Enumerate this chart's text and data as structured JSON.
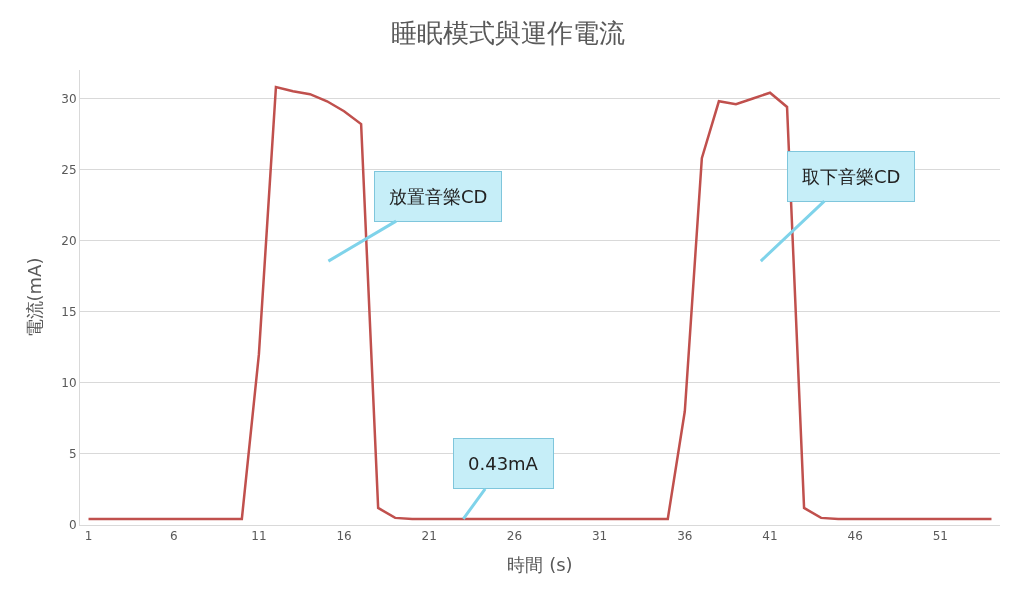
{
  "chart_data": {
    "type": "line",
    "title": "睡眠模式與運作電流",
    "xlabel": "時間 (s)",
    "ylabel": "電流(mA)",
    "x": [
      1,
      2,
      3,
      4,
      5,
      6,
      7,
      8,
      9,
      10,
      11,
      12,
      13,
      14,
      15,
      16,
      17,
      18,
      19,
      20,
      21,
      22,
      23,
      24,
      25,
      26,
      27,
      28,
      29,
      30,
      31,
      32,
      33,
      34,
      35,
      36,
      37,
      38,
      39,
      40,
      41,
      42,
      43,
      44,
      45,
      46,
      47,
      48,
      49,
      50,
      51,
      52,
      53,
      54
    ],
    "series": [
      {
        "color": "#c0504d",
        "values": [
          0.43,
          0.43,
          0.43,
          0.43,
          0.43,
          0.43,
          0.43,
          0.43,
          0.43,
          0.43,
          12,
          30.8,
          30.5,
          30.3,
          29.8,
          29.1,
          28.2,
          1.2,
          0.5,
          0.43,
          0.43,
          0.43,
          0.43,
          0.43,
          0.43,
          0.43,
          0.43,
          0.43,
          0.43,
          0.43,
          0.43,
          0.43,
          0.43,
          0.43,
          0.43,
          8,
          25.8,
          29.8,
          29.6,
          30,
          30.4,
          29.4,
          1.2,
          0.5,
          0.43,
          0.43,
          0.43,
          0.43,
          0.43,
          0.43,
          0.43,
          0.43,
          0.43,
          0.43
        ]
      }
    ],
    "xlim": [
      0.5,
      54.5
    ],
    "xticks": [
      1,
      6,
      11,
      16,
      21,
      26,
      31,
      36,
      41,
      46,
      51
    ],
    "ylim": [
      0,
      32
    ],
    "yticks": [
      0,
      5,
      10,
      15,
      20,
      25,
      30
    ],
    "grid": "y",
    "marker": "none",
    "line_style": "solid",
    "annotations": [
      "放置音樂CD",
      "取下音樂CD",
      {
        "text": "0.43mA",
        "x": 23,
        "y": 0.43
      }
    ]
  }
}
